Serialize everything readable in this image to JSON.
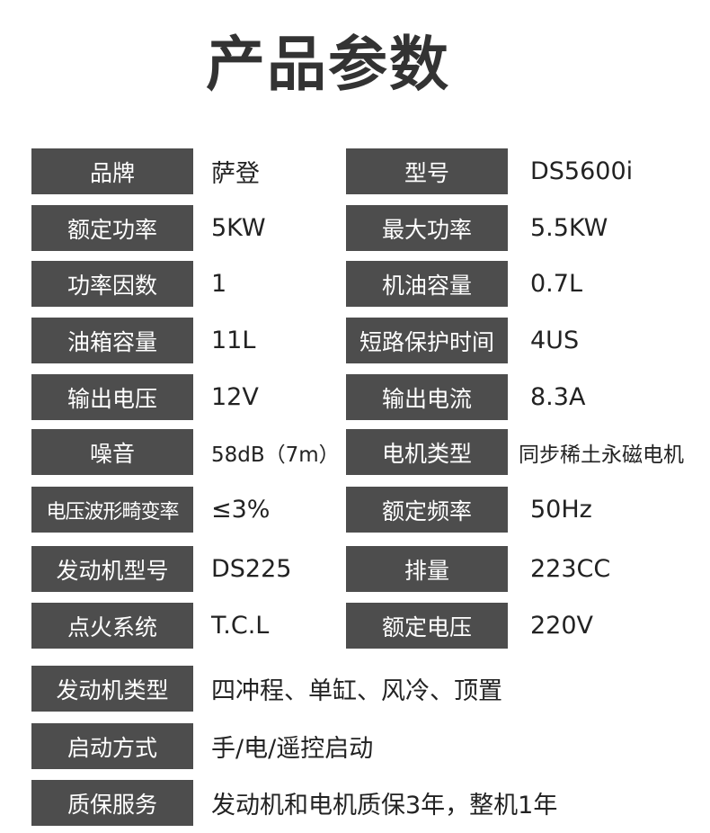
{
  "title": "产品参数",
  "colors": {
    "label_bg": "#4d4d4d",
    "label_text": "#ffffff",
    "value_text": "#222222"
  },
  "rows": [
    {
      "l1": "品牌",
      "v1": "萨登",
      "l2": "型号",
      "v2": "DS5600i"
    },
    {
      "l1": "额定功率",
      "v1": "5KW",
      "l2": "最大功率",
      "v2": "5.5KW"
    },
    {
      "l1": "功率因数",
      "v1": "1",
      "l2": "机油容量",
      "v2": "0.7L"
    },
    {
      "l1": "油箱容量",
      "v1": "11L",
      "l2": "短路保护时间",
      "v2": "4US"
    },
    {
      "l1": "输出电压",
      "v1": "12V",
      "l2": "输出电流",
      "v2": "8.3A"
    },
    {
      "l1": "噪音",
      "v1": "58dB（7m）",
      "l2": "电机类型",
      "v2": "同步稀土永磁电机"
    },
    {
      "l1": "电压波形畸变率",
      "v1": "≤3%",
      "l2": "额定频率",
      "v2": "50Hz"
    },
    {
      "l1": "发动机型号",
      "v1": "DS225",
      "l2": "排量",
      "v2": "223CC"
    },
    {
      "l1": "点火系统",
      "v1": "T.C.L",
      "l2": "额定电压",
      "v2": "220V"
    }
  ],
  "wide_rows": [
    {
      "l1": "发动机类型",
      "v1": "四冲程、单缸、风冷、顶置"
    },
    {
      "l1": "启动方式",
      "v1": "手/电/遥控启动"
    },
    {
      "l1": "质保服务",
      "v1": "发动机和电机质保3年，整机1年"
    }
  ]
}
